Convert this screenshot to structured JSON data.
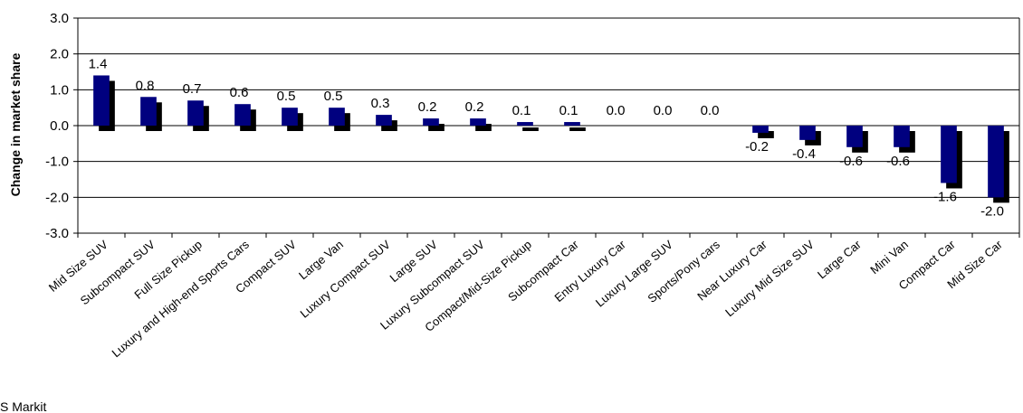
{
  "chart_data": {
    "type": "bar",
    "title": "",
    "xlabel": "",
    "ylabel": "Change in market share",
    "ylim": [
      -3.0,
      3.0
    ],
    "yticks": [
      "3.0",
      "2.0",
      "1.0",
      "0.0",
      "-1.0",
      "-2.0",
      "-3.0"
    ],
    "grid": true,
    "categories": [
      "Mid Size SUV",
      "Subcompact SUV",
      "Full Size Pickup",
      "Luxury and High-end Sports Cars",
      "Compact SUV",
      "Large Van",
      "Luxury Compact SUV",
      "Large SUV",
      "Luxury Subcompact SUV",
      "Compact/Mid-Size Pickup",
      "Subcompact Car",
      "Entry Luxury Car",
      "Luxury Large SUV",
      "Sports/Pony cars",
      "Near Luxury Car",
      "Luxury Mid Size SUV",
      "Large Car",
      "Mini Van",
      "Compact Car",
      "Mid Size Car"
    ],
    "values": [
      1.4,
      0.8,
      0.7,
      0.6,
      0.5,
      0.5,
      0.3,
      0.2,
      0.2,
      0.1,
      0.1,
      0.0,
      0.0,
      0.0,
      -0.2,
      -0.4,
      -0.6,
      -0.6,
      -1.6,
      -2.0
    ],
    "data_labels": [
      "1.4",
      "0.8",
      "0.7",
      "0.6",
      "0.5",
      "0.5",
      "0.3",
      "0.2",
      "0.2",
      "0.1",
      "0.1",
      "0.0",
      "0.0",
      "0.0",
      "-0.2",
      "-0.4",
      "-0.6",
      "-0.6",
      "-1.6",
      "-2.0"
    ],
    "bar_color": "#00007f",
    "shadow_color": "#000000"
  },
  "source_text": "S Markit"
}
